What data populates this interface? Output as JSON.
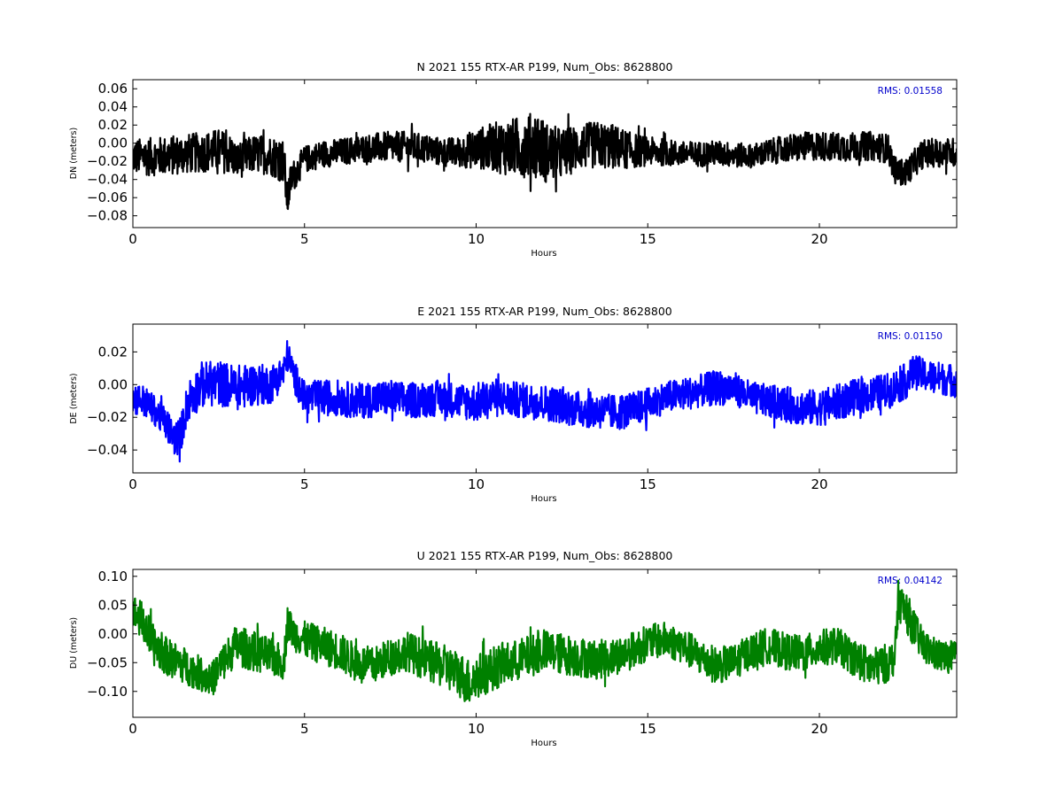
{
  "chart_data": [
    {
      "type": "line",
      "title": "N 2021 155 RTX-AR  P199, Num_Obs: 8628800",
      "xlabel": "Hours",
      "ylabel": "DN (meters)",
      "xlim": [
        0,
        24
      ],
      "ylim": [
        -0.093,
        0.07
      ],
      "xticks": [
        0,
        5,
        10,
        15,
        20
      ],
      "yticks": [
        -0.08,
        -0.06,
        -0.04,
        -0.02,
        0.0,
        0.02,
        0.04,
        0.06
      ],
      "ytick_labels": [
        "−0.08",
        "−0.06",
        "−0.04",
        "−0.02",
        "0.00",
        "0.02",
        "0.04",
        "0.06"
      ],
      "rms_label": "RMS:  0.01558",
      "color": "#000000",
      "series": [
        {
          "x": [
            0,
            0.5,
            1,
            1.5,
            2,
            2.5,
            2.9,
            3,
            3.5,
            4,
            4.4,
            4.5,
            4.6,
            5,
            5.5,
            6,
            6.5,
            7,
            7.5,
            8,
            8.5,
            9,
            9.5,
            10,
            10.5,
            11,
            11.5,
            11.8,
            12,
            12.5,
            13,
            13.5,
            14,
            14.5,
            15,
            15.5,
            16,
            16.5,
            17,
            17.5,
            18,
            18.5,
            19,
            19.5,
            20,
            20.5,
            21,
            21.5,
            22,
            22.2,
            22.5,
            23,
            23.5,
            24
          ],
          "y": [
            -0.015,
            -0.015,
            -0.014,
            -0.012,
            -0.01,
            -0.008,
            -0.013,
            -0.02,
            -0.012,
            -0.013,
            -0.02,
            -0.065,
            -0.04,
            -0.018,
            -0.012,
            -0.01,
            -0.007,
            -0.005,
            -0.004,
            -0.004,
            -0.006,
            -0.01,
            -0.01,
            -0.006,
            -0.004,
            -0.005,
            -0.003,
            0.0,
            -0.01,
            -0.012,
            -0.004,
            -0.002,
            -0.004,
            -0.008,
            -0.009,
            -0.01,
            -0.012,
            -0.012,
            -0.011,
            -0.013,
            -0.014,
            -0.01,
            -0.006,
            -0.004,
            -0.003,
            -0.004,
            -0.004,
            -0.003,
            -0.006,
            -0.03,
            -0.033,
            -0.012,
            -0.01,
            -0.01
          ],
          "spread": [
            0.02,
            0.021,
            0.022,
            0.022,
            0.022,
            0.024,
            0.022,
            0.02,
            0.021,
            0.022,
            0.025,
            0.02,
            0.018,
            0.015,
            0.015,
            0.015,
            0.015,
            0.016,
            0.017,
            0.017,
            0.016,
            0.016,
            0.017,
            0.022,
            0.027,
            0.032,
            0.035,
            0.038,
            0.034,
            0.028,
            0.025,
            0.026,
            0.025,
            0.02,
            0.016,
            0.015,
            0.014,
            0.014,
            0.014,
            0.014,
            0.013,
            0.014,
            0.015,
            0.016,
            0.016,
            0.016,
            0.016,
            0.016,
            0.016,
            0.015,
            0.015,
            0.016,
            0.016,
            0.016
          ]
        }
      ]
    },
    {
      "type": "line",
      "title": "E 2021 155 RTX-AR  P199, Num_Obs: 8628800",
      "xlabel": "Hours",
      "ylabel": "DE (meters)",
      "xlim": [
        0,
        24
      ],
      "ylim": [
        -0.054,
        0.037
      ],
      "xticks": [
        0,
        5,
        10,
        15,
        20
      ],
      "yticks": [
        -0.04,
        -0.02,
        0.0,
        0.02
      ],
      "ytick_labels": [
        "−0.04",
        "−0.02",
        "0.00",
        "0.02"
      ],
      "rms_label": "RMS:  0.01150",
      "color": "#0000ff",
      "series": [
        {
          "x": [
            0,
            0.3,
            0.6,
            1,
            1.2,
            1.4,
            1.6,
            2,
            2.5,
            3,
            3.5,
            4,
            4.4,
            4.5,
            4.7,
            5,
            5.5,
            6,
            6.5,
            7,
            7.5,
            8,
            8.5,
            9,
            9.5,
            10,
            10.5,
            11,
            11.5,
            12,
            12.5,
            13,
            13.5,
            14,
            14.5,
            15,
            15.5,
            16,
            16.5,
            17,
            17.5,
            18,
            18.5,
            19,
            19.5,
            20,
            20.5,
            21,
            21.5,
            22,
            22.5,
            22.8,
            23,
            23.5,
            24
          ],
          "y": [
            -0.008,
            -0.01,
            -0.015,
            -0.025,
            -0.033,
            -0.03,
            -0.01,
            0.0,
            0.001,
            -0.002,
            0.0,
            0.0,
            0.008,
            0.018,
            0.005,
            -0.008,
            -0.008,
            -0.008,
            -0.01,
            -0.009,
            -0.008,
            -0.01,
            -0.009,
            -0.008,
            -0.01,
            -0.011,
            -0.008,
            -0.009,
            -0.01,
            -0.011,
            -0.013,
            -0.015,
            -0.016,
            -0.017,
            -0.016,
            -0.012,
            -0.008,
            -0.006,
            -0.004,
            -0.002,
            -0.002,
            -0.008,
            -0.01,
            -0.012,
            -0.014,
            -0.014,
            -0.011,
            -0.008,
            -0.006,
            -0.004,
            0.002,
            0.008,
            0.006,
            0.004,
            0.002
          ],
          "spread": [
            0.01,
            0.01,
            0.009,
            0.01,
            0.01,
            0.011,
            0.013,
            0.014,
            0.014,
            0.014,
            0.013,
            0.012,
            0.01,
            0.01,
            0.01,
            0.01,
            0.011,
            0.011,
            0.011,
            0.011,
            0.011,
            0.011,
            0.011,
            0.011,
            0.011,
            0.012,
            0.012,
            0.011,
            0.011,
            0.011,
            0.011,
            0.011,
            0.011,
            0.011,
            0.011,
            0.01,
            0.01,
            0.01,
            0.01,
            0.011,
            0.01,
            0.01,
            0.01,
            0.011,
            0.011,
            0.011,
            0.011,
            0.011,
            0.011,
            0.011,
            0.011,
            0.011,
            0.01,
            0.01,
            0.01
          ]
        }
      ]
    },
    {
      "type": "line",
      "title": "U 2021 155 RTX-AR  P199, Num_Obs: 8628800",
      "xlabel": "Hours",
      "ylabel": "DU (meters)",
      "xlim": [
        0,
        24
      ],
      "ylim": [
        -0.145,
        0.112
      ],
      "xticks": [
        0,
        5,
        10,
        15,
        20
      ],
      "yticks": [
        -0.1,
        -0.05,
        0.0,
        0.05,
        0.1
      ],
      "ytick_labels": [
        "−0.10",
        "−0.05",
        "0.00",
        "0.05",
        "0.10"
      ],
      "rms_label": "RMS:  0.04142",
      "color": "#008000",
      "series": [
        {
          "x": [
            0,
            0.3,
            0.6,
            1,
            1.5,
            2,
            2.3,
            2.5,
            3,
            3.5,
            4,
            4.4,
            4.5,
            4.7,
            5,
            5.5,
            6,
            6.5,
            7,
            7.5,
            8,
            8.5,
            9,
            9.5,
            9.8,
            10,
            10.5,
            11,
            11.5,
            12,
            12.5,
            13,
            13.5,
            14,
            14.5,
            15,
            15.5,
            16,
            16.5,
            17,
            17.5,
            18,
            18.5,
            19,
            19.5,
            20,
            20.5,
            21,
            21.5,
            22,
            22.2,
            22.3,
            22.6,
            23,
            23.5,
            24
          ],
          "y": [
            0.04,
            0.02,
            -0.02,
            -0.04,
            -0.055,
            -0.07,
            -0.08,
            -0.06,
            -0.02,
            -0.03,
            -0.04,
            -0.05,
            0.02,
            0.0,
            -0.01,
            -0.02,
            -0.03,
            -0.05,
            -0.055,
            -0.04,
            -0.03,
            -0.045,
            -0.055,
            -0.07,
            -0.085,
            -0.075,
            -0.06,
            -0.05,
            -0.04,
            -0.03,
            -0.035,
            -0.04,
            -0.045,
            -0.04,
            -0.03,
            -0.015,
            -0.01,
            -0.02,
            -0.04,
            -0.055,
            -0.05,
            -0.03,
            -0.02,
            -0.03,
            -0.035,
            -0.025,
            -0.02,
            -0.04,
            -0.06,
            -0.05,
            -0.04,
            0.06,
            0.03,
            -0.02,
            -0.04,
            -0.04
          ],
          "spread": [
            0.03,
            0.035,
            0.035,
            0.033,
            0.032,
            0.03,
            0.03,
            0.033,
            0.035,
            0.035,
            0.033,
            0.03,
            0.03,
            0.03,
            0.032,
            0.033,
            0.033,
            0.033,
            0.032,
            0.033,
            0.034,
            0.036,
            0.038,
            0.04,
            0.042,
            0.04,
            0.038,
            0.037,
            0.036,
            0.036,
            0.036,
            0.035,
            0.034,
            0.033,
            0.032,
            0.031,
            0.031,
            0.031,
            0.032,
            0.032,
            0.031,
            0.031,
            0.031,
            0.032,
            0.032,
            0.032,
            0.032,
            0.033,
            0.034,
            0.034,
            0.03,
            0.035,
            0.035,
            0.03,
            0.028,
            0.028
          ]
        }
      ]
    }
  ]
}
